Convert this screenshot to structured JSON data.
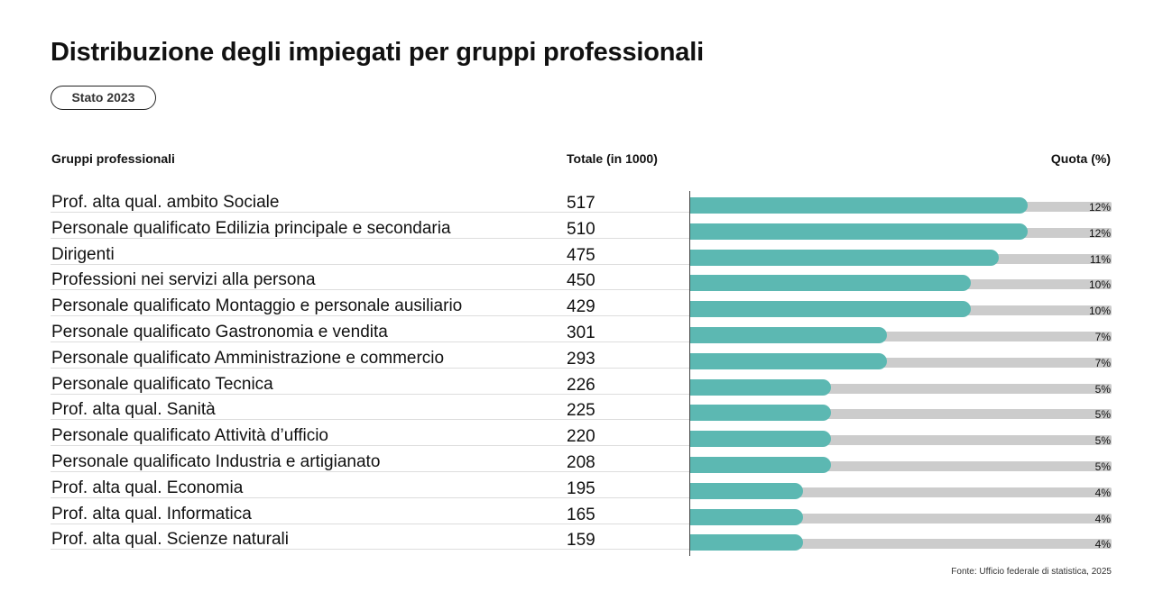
{
  "header": {
    "title": "Distribuzione degli impiegati per gruppi professionali",
    "badge": "Stato 2023"
  },
  "columns": {
    "group": "Gruppi professionali",
    "total": "Totale (in 1000)",
    "share": "Quota (%)"
  },
  "footer": {
    "source": "Fonte: Ufficio federale di statistica, 2025"
  },
  "colors": {
    "bar": "#5cb8b2",
    "track": "#cccccc"
  },
  "chart_data": {
    "type": "bar",
    "orientation": "horizontal",
    "title": "Distribuzione degli impiegati per gruppi professionali",
    "xlabel": "Quota (%)",
    "ylabel": "Gruppi professionali",
    "xlim": [
      0,
      15
    ],
    "grid": false,
    "categories": [
      "Prof. alta qual. ambito Sociale",
      "Personale qualificato Edilizia principale e secondaria",
      "Dirigenti",
      "Professioni nei servizi alla persona",
      "Personale qualificato Montaggio e personale ausiliario",
      "Personale qualificato Gastronomia e vendita",
      "Personale qualificato Amministrazione e commercio",
      "Personale qualificato Tecnica",
      "Prof. alta qual. Sanità",
      "Personale qualificato Attività d’ufficio",
      "Personale qualificato Industria e artigianato",
      "Prof. alta qual. Economia",
      "Prof. alta qual. Informatica",
      "Prof. alta qual. Scienze naturali"
    ],
    "totals": [
      517,
      510,
      475,
      450,
      429,
      301,
      293,
      226,
      225,
      220,
      208,
      195,
      165,
      159
    ],
    "values": [
      12,
      12,
      11,
      10,
      10,
      7,
      7,
      5,
      5,
      5,
      5,
      4,
      4,
      4
    ],
    "value_labels": [
      "12%",
      "12%",
      "11%",
      "10%",
      "10%",
      "7%",
      "7%",
      "5%",
      "5%",
      "5%",
      "5%",
      "4%",
      "4%",
      "4%"
    ]
  }
}
